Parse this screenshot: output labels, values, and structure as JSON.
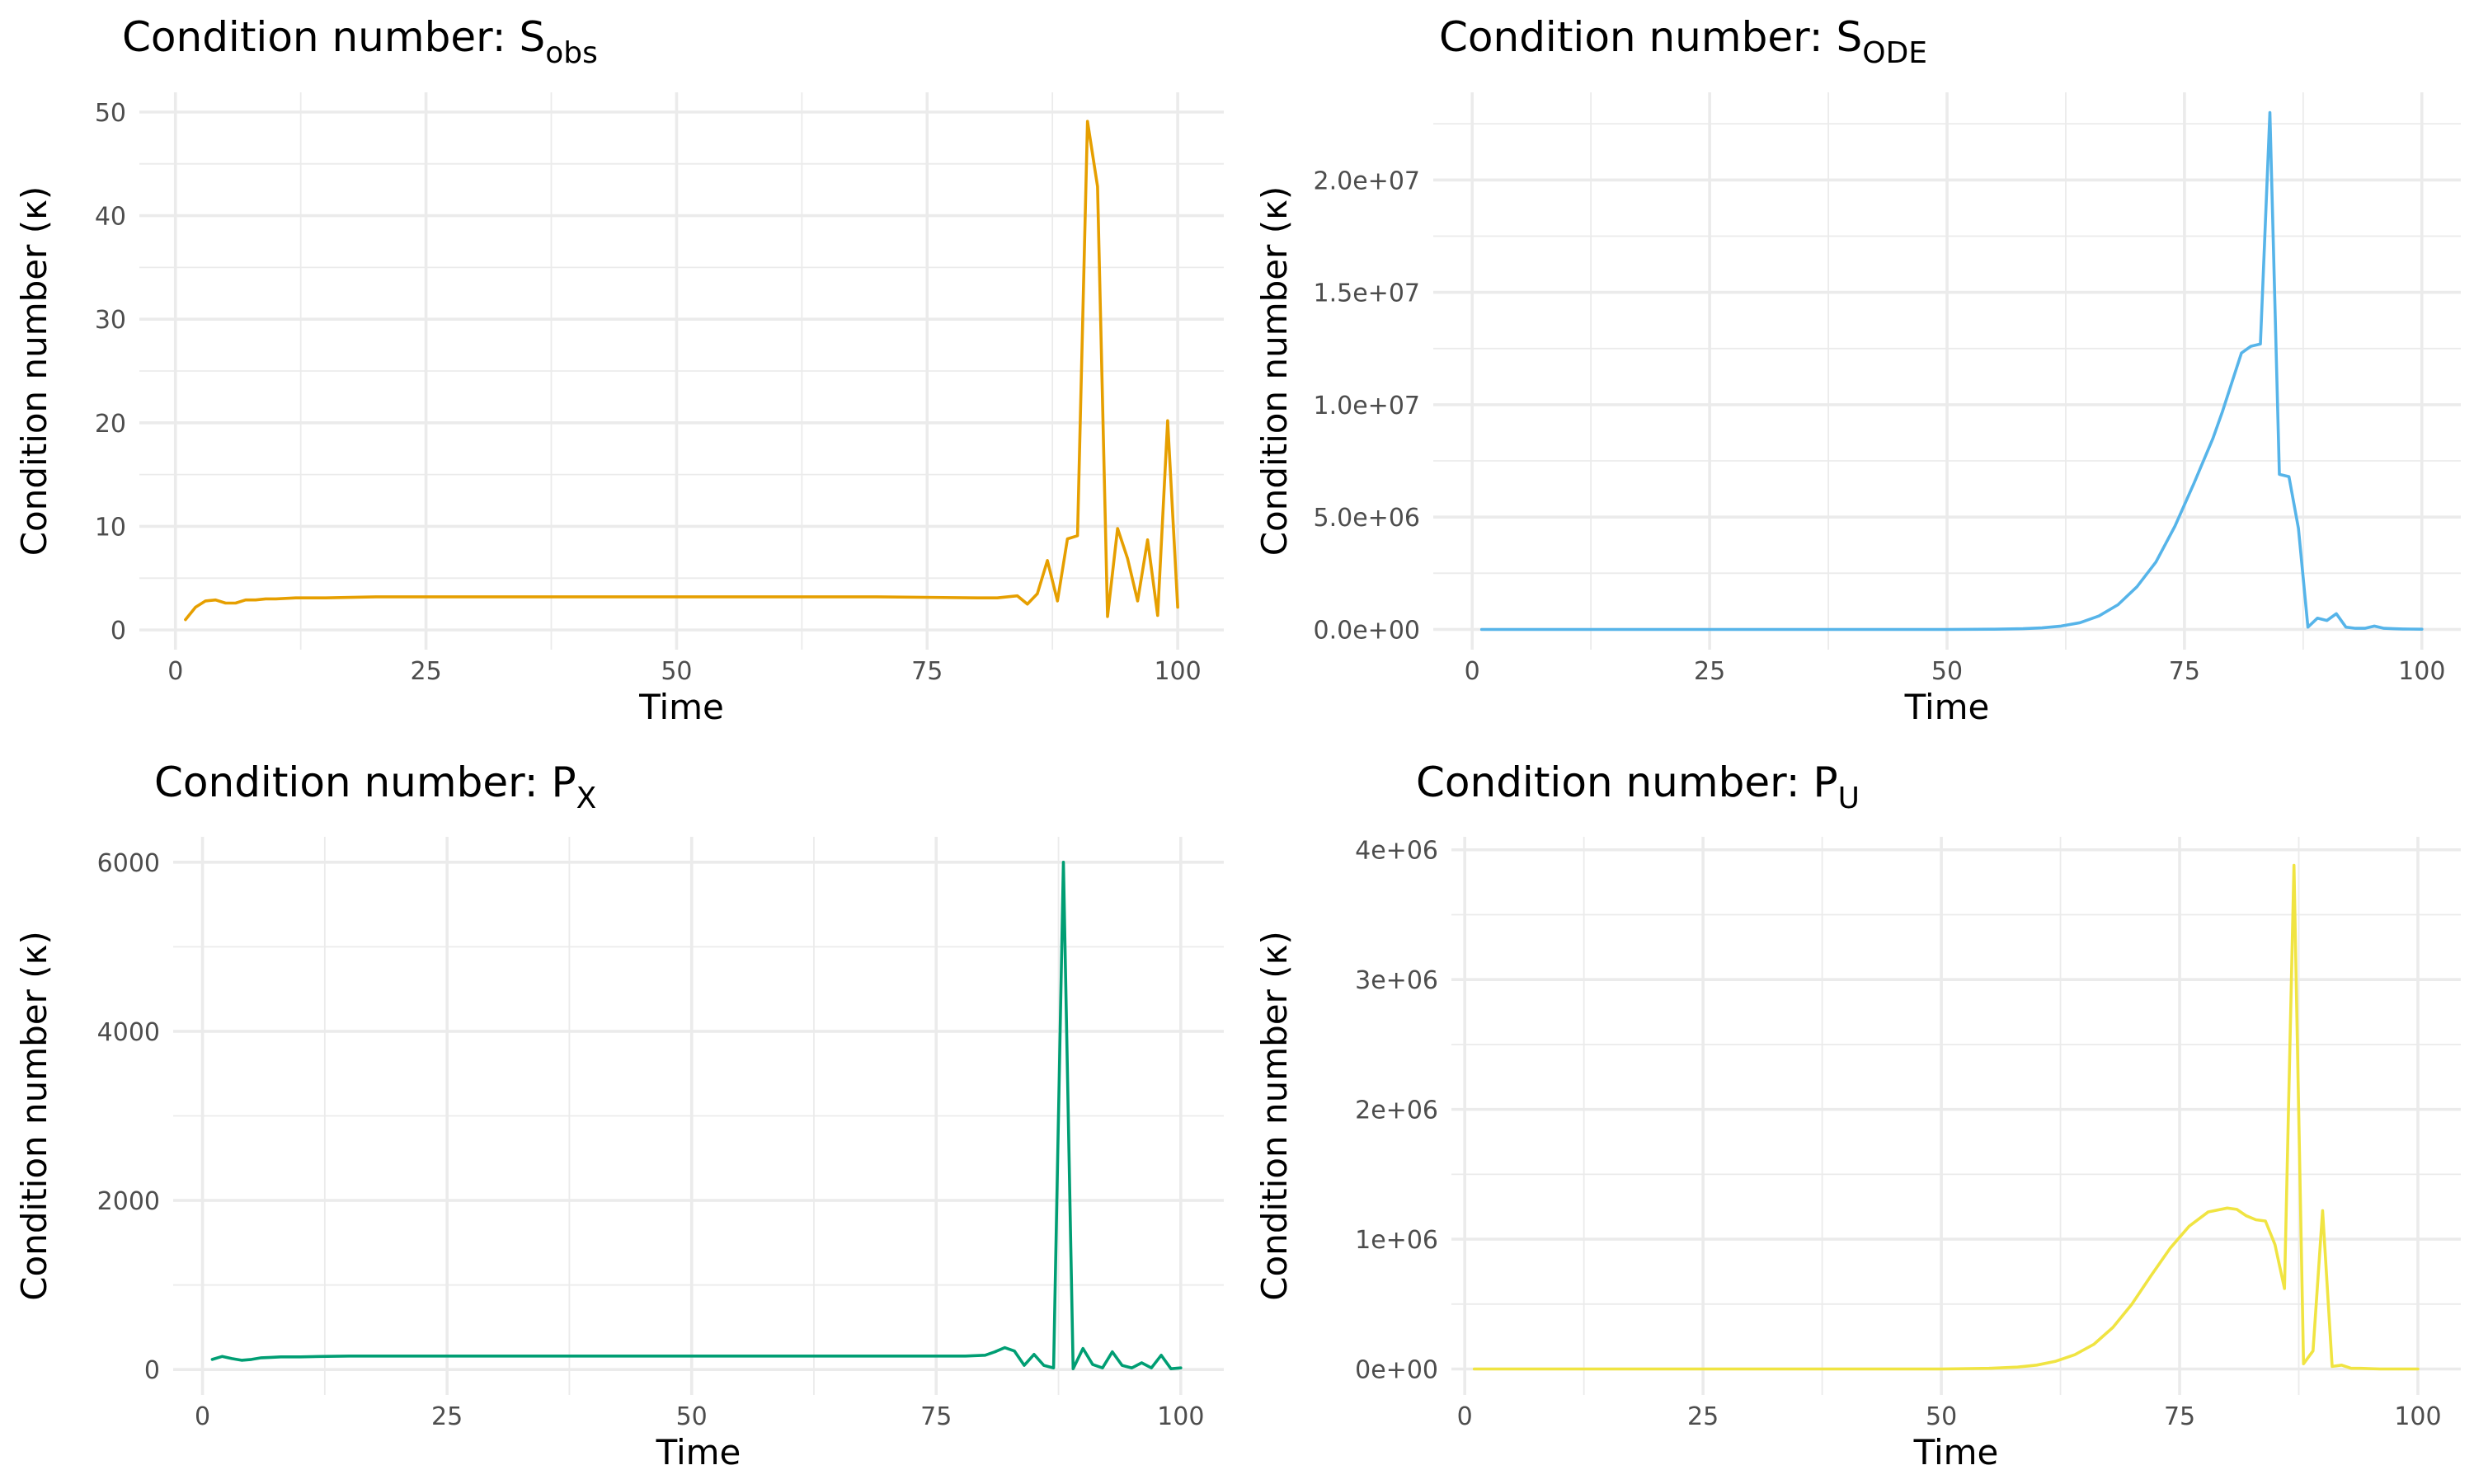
{
  "chart_data": [
    {
      "type": "line",
      "title": "Condition number: S",
      "title_subscript": "obs",
      "xlabel": "Time",
      "ylabel": "Condition number (κ)",
      "xlim": [
        -3.6,
        104.6
      ],
      "ylim": [
        -1.9,
        51.9
      ],
      "xticks": [
        0,
        25,
        50,
        75,
        100
      ],
      "xtick_labels": [
        "0",
        "25",
        "50",
        "75",
        "100"
      ],
      "yticks": [
        0,
        10,
        20,
        30,
        40,
        50
      ],
      "ytick_labels": [
        "0",
        "10",
        "20",
        "30",
        "40",
        "50"
      ],
      "grid": true,
      "color": "#E69F00",
      "series": [
        {
          "x": [
            1,
            2,
            3,
            4,
            5,
            6,
            7,
            8,
            9,
            10,
            12,
            15,
            20,
            30,
            50,
            70,
            80,
            82,
            84,
            85,
            86,
            87,
            88,
            89,
            90,
            91,
            92,
            93,
            94,
            95,
            96,
            97,
            98,
            99,
            100
          ],
          "values": [
            1.0,
            2.2,
            2.8,
            2.9,
            2.6,
            2.6,
            2.9,
            2.9,
            3.0,
            3.0,
            3.1,
            3.1,
            3.2,
            3.2,
            3.2,
            3.2,
            3.1,
            3.1,
            3.3,
            2.5,
            3.5,
            6.7,
            2.8,
            8.8,
            9.1,
            49.1,
            42.8,
            1.3,
            9.8,
            6.9,
            2.8,
            8.7,
            1.4,
            20.2,
            2.2
          ]
        }
      ]
    },
    {
      "type": "line",
      "title": "Condition number: S",
      "title_subscript": "ODE",
      "xlabel": "Time",
      "ylabel": "Condition number (κ)",
      "xlim": [
        -4.1,
        104.1
      ],
      "ylim": [
        -900000,
        23900000
      ],
      "xticks": [
        0,
        25,
        50,
        75,
        100
      ],
      "xtick_labels": [
        "0",
        "25",
        "50",
        "75",
        "100"
      ],
      "yticks": [
        0,
        5000000,
        10000000,
        15000000,
        20000000
      ],
      "ytick_labels": [
        "0.0e+00",
        "5.0e+06",
        "1.0e+07",
        "1.5e+07",
        "2.0e+07"
      ],
      "grid": true,
      "color": "#56B4E9",
      "series": [
        {
          "x": [
            1,
            10,
            20,
            30,
            40,
            50,
            55,
            58,
            60,
            62,
            64,
            66,
            68,
            70,
            72,
            74,
            76,
            78,
            79,
            80,
            81,
            82,
            83,
            84,
            85,
            86,
            87,
            88,
            89,
            90,
            91,
            92,
            93,
            94,
            95,
            96,
            97,
            98,
            100
          ],
          "values": [
            0,
            0,
            0,
            0,
            0,
            0,
            10000,
            30000,
            70000,
            150000,
            300000,
            600000,
            1100000,
            1900000,
            3000000,
            4600000,
            6500000,
            8500000,
            9700000,
            11000000,
            12300000,
            12600000,
            12700000,
            23000000,
            6900000,
            6800000,
            4500000,
            100000,
            500000,
            400000,
            700000,
            100000,
            50000,
            50000,
            150000,
            50000,
            30000,
            20000,
            10000
          ]
        }
      ]
    },
    {
      "type": "line",
      "title": "Condition number: P",
      "title_subscript": "X",
      "xlabel": "Time",
      "ylabel": "Condition number (κ)",
      "xlim": [
        -3.0,
        104.4
      ],
      "ylim": [
        -300,
        6300
      ],
      "xticks": [
        0,
        25,
        50,
        75,
        100
      ],
      "xtick_labels": [
        "0",
        "25",
        "50",
        "75",
        "100"
      ],
      "yticks": [
        0,
        2000,
        4000,
        6000
      ],
      "ytick_labels": [
        "0",
        "2000",
        "4000",
        "6000"
      ],
      "grid": true,
      "color": "#009E73",
      "series": [
        {
          "x": [
            1,
            2,
            3,
            4,
            5,
            6,
            7,
            8,
            9,
            10,
            12,
            15,
            20,
            30,
            50,
            70,
            78,
            80,
            81,
            82,
            83,
            84,
            85,
            86,
            87,
            88,
            89,
            90,
            91,
            92,
            93,
            94,
            95,
            96,
            97,
            98,
            99,
            100
          ],
          "values": [
            120,
            155,
            130,
            110,
            120,
            140,
            145,
            150,
            150,
            150,
            155,
            160,
            160,
            160,
            160,
            160,
            160,
            170,
            210,
            260,
            220,
            50,
            180,
            50,
            20,
            6000,
            10,
            250,
            60,
            20,
            210,
            50,
            20,
            80,
            20,
            170,
            10,
            20
          ]
        }
      ]
    },
    {
      "type": "line",
      "title": "Condition number: P",
      "title_subscript": "U",
      "xlabel": "Time",
      "ylabel": "Condition number (κ)",
      "xlim": [
        -1.4,
        104.5
      ],
      "ylim": [
        -200000,
        4100000
      ],
      "xticks": [
        0,
        25,
        50,
        75,
        100
      ],
      "xtick_labels": [
        "0",
        "25",
        "50",
        "75",
        "100"
      ],
      "yticks": [
        0,
        1000000,
        2000000,
        3000000,
        4000000
      ],
      "ytick_labels": [
        "0e+00",
        "1e+06",
        "2e+06",
        "3e+06",
        "4e+06"
      ],
      "grid": true,
      "color": "#F0E442",
      "series": [
        {
          "x": [
            1,
            10,
            20,
            30,
            40,
            50,
            55,
            58,
            60,
            62,
            64,
            66,
            68,
            70,
            72,
            74,
            76,
            78,
            80,
            81,
            82,
            83,
            84,
            85,
            86,
            87,
            88,
            89,
            90,
            91,
            92,
            93,
            94,
            96,
            100
          ],
          "values": [
            0,
            0,
            0,
            0,
            0,
            0,
            5000,
            15000,
            30000,
            60000,
            110000,
            190000,
            320000,
            500000,
            720000,
            930000,
            1100000,
            1210000,
            1240000,
            1230000,
            1180000,
            1150000,
            1140000,
            960000,
            620000,
            3880000,
            40000,
            140000,
            1220000,
            20000,
            30000,
            5000,
            5000,
            0,
            0
          ]
        }
      ]
    }
  ]
}
